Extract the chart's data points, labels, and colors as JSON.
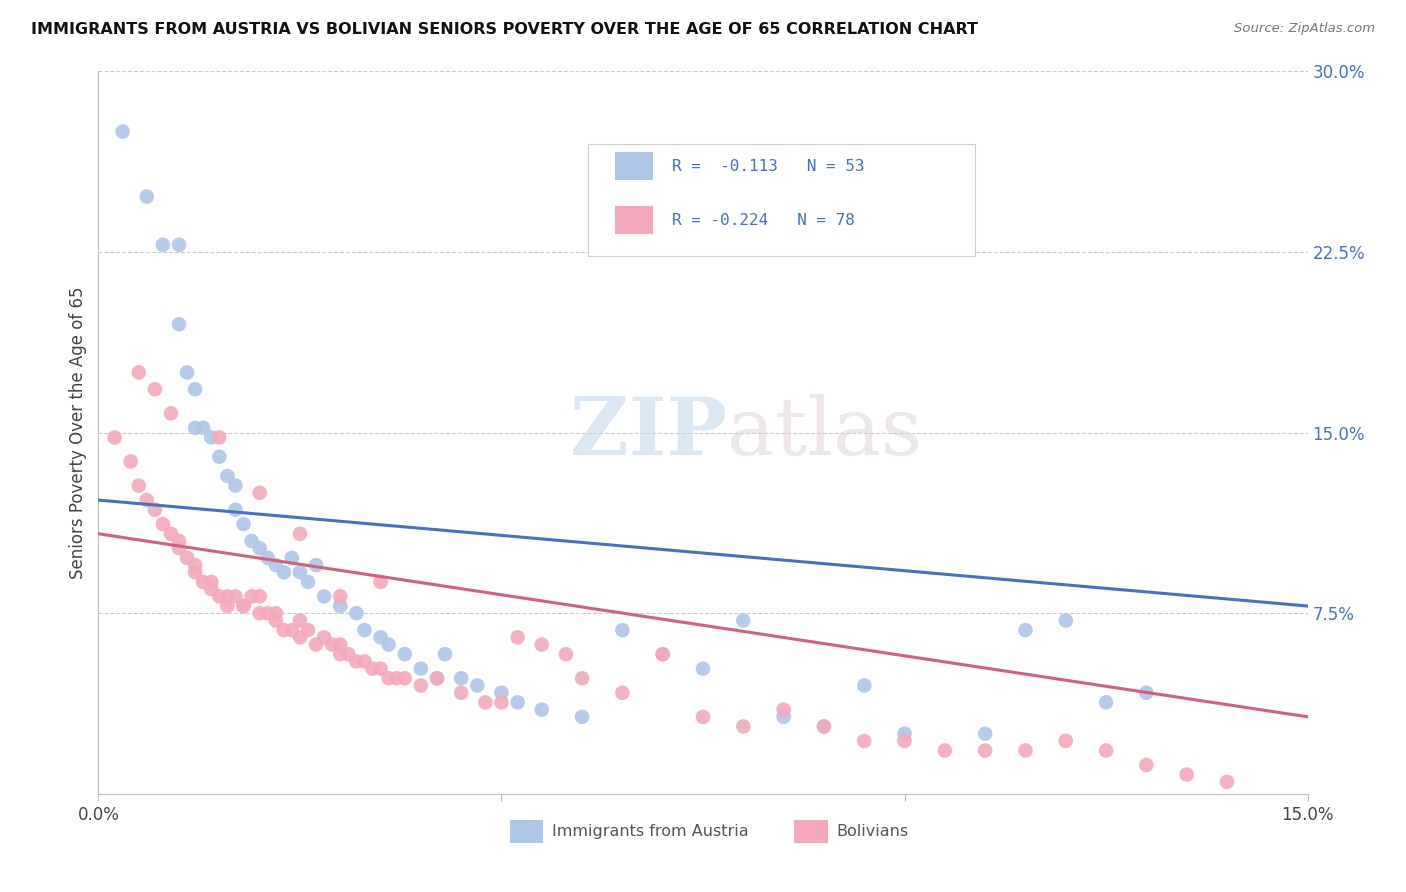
{
  "title": "IMMIGRANTS FROM AUSTRIA VS BOLIVIAN SENIORS POVERTY OVER THE AGE OF 65 CORRELATION CHART",
  "source": "Source: ZipAtlas.com",
  "ylabel": "Seniors Poverty Over the Age of 65",
  "x_min": 0.0,
  "x_max": 0.15,
  "y_min": 0.0,
  "y_max": 0.3,
  "y_ticks_right": [
    0.075,
    0.15,
    0.225,
    0.3
  ],
  "y_tick_labels_right": [
    "7.5%",
    "15.0%",
    "22.5%",
    "30.0%"
  ],
  "austria_color": "#aec6e8",
  "austria_line_color": "#4472c4",
  "bolivian_color": "#f4a8bb",
  "bolivian_line_color": "#d45f7a",
  "watermark_zip": "ZIP",
  "watermark_atlas": "atlas",
  "austria_x": [
    0.003,
    0.006,
    0.008,
    0.01,
    0.01,
    0.011,
    0.012,
    0.012,
    0.013,
    0.014,
    0.015,
    0.016,
    0.017,
    0.017,
    0.018,
    0.019,
    0.02,
    0.021,
    0.022,
    0.023,
    0.024,
    0.025,
    0.026,
    0.027,
    0.028,
    0.03,
    0.032,
    0.033,
    0.035,
    0.036,
    0.038,
    0.04,
    0.042,
    0.043,
    0.045,
    0.047,
    0.05,
    0.052,
    0.055,
    0.06,
    0.065,
    0.07,
    0.075,
    0.08,
    0.085,
    0.09,
    0.095,
    0.1,
    0.11,
    0.115,
    0.12,
    0.125,
    0.13
  ],
  "austria_y": [
    0.275,
    0.248,
    0.228,
    0.228,
    0.195,
    0.175,
    0.168,
    0.152,
    0.152,
    0.148,
    0.14,
    0.132,
    0.128,
    0.118,
    0.112,
    0.105,
    0.102,
    0.098,
    0.095,
    0.092,
    0.098,
    0.092,
    0.088,
    0.095,
    0.082,
    0.078,
    0.075,
    0.068,
    0.065,
    0.062,
    0.058,
    0.052,
    0.048,
    0.058,
    0.048,
    0.045,
    0.042,
    0.038,
    0.035,
    0.032,
    0.068,
    0.058,
    0.052,
    0.072,
    0.032,
    0.028,
    0.045,
    0.025,
    0.025,
    0.068,
    0.072,
    0.038,
    0.042
  ],
  "bolivian_x": [
    0.002,
    0.004,
    0.005,
    0.006,
    0.007,
    0.008,
    0.009,
    0.01,
    0.01,
    0.011,
    0.012,
    0.012,
    0.013,
    0.014,
    0.014,
    0.015,
    0.016,
    0.016,
    0.017,
    0.018,
    0.018,
    0.019,
    0.02,
    0.02,
    0.021,
    0.022,
    0.022,
    0.023,
    0.024,
    0.025,
    0.025,
    0.026,
    0.027,
    0.028,
    0.029,
    0.03,
    0.03,
    0.031,
    0.032,
    0.033,
    0.034,
    0.035,
    0.036,
    0.037,
    0.038,
    0.04,
    0.042,
    0.045,
    0.048,
    0.05,
    0.052,
    0.055,
    0.058,
    0.06,
    0.065,
    0.07,
    0.075,
    0.08,
    0.085,
    0.09,
    0.095,
    0.1,
    0.105,
    0.11,
    0.115,
    0.12,
    0.125,
    0.13,
    0.135,
    0.14,
    0.005,
    0.007,
    0.009,
    0.015,
    0.02,
    0.025,
    0.03,
    0.035
  ],
  "bolivian_y": [
    0.148,
    0.138,
    0.128,
    0.122,
    0.118,
    0.112,
    0.108,
    0.102,
    0.105,
    0.098,
    0.095,
    0.092,
    0.088,
    0.088,
    0.085,
    0.082,
    0.082,
    0.078,
    0.082,
    0.078,
    0.078,
    0.082,
    0.082,
    0.075,
    0.075,
    0.075,
    0.072,
    0.068,
    0.068,
    0.072,
    0.065,
    0.068,
    0.062,
    0.065,
    0.062,
    0.062,
    0.058,
    0.058,
    0.055,
    0.055,
    0.052,
    0.052,
    0.048,
    0.048,
    0.048,
    0.045,
    0.048,
    0.042,
    0.038,
    0.038,
    0.065,
    0.062,
    0.058,
    0.048,
    0.042,
    0.058,
    0.032,
    0.028,
    0.035,
    0.028,
    0.022,
    0.022,
    0.018,
    0.018,
    0.018,
    0.022,
    0.018,
    0.012,
    0.008,
    0.005,
    0.175,
    0.168,
    0.158,
    0.148,
    0.125,
    0.108,
    0.082,
    0.088
  ],
  "austria_line_x0": 0.0,
  "austria_line_x1": 0.15,
  "austria_line_y0": 0.122,
  "austria_line_y1": 0.078,
  "bolivian_line_x0": 0.0,
  "bolivian_line_x1": 0.15,
  "bolivian_line_y0": 0.108,
  "bolivian_line_y1": 0.032
}
